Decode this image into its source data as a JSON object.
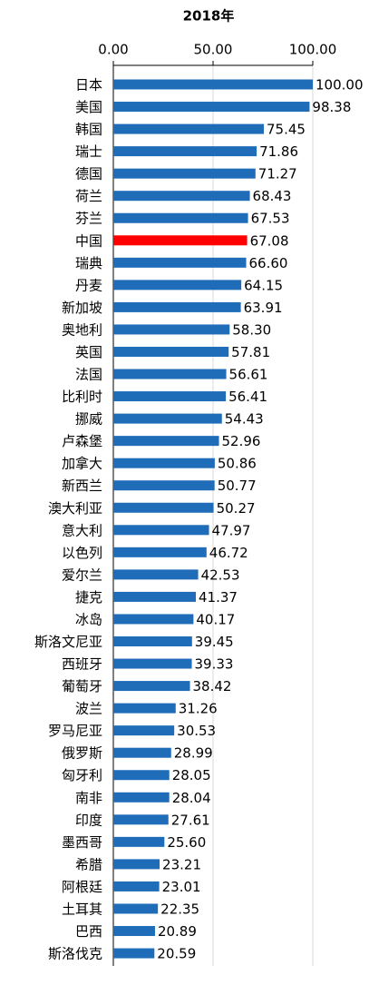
{
  "chart_data": {
    "type": "hbar",
    "title": "2018年",
    "categories": [
      "日本",
      "美国",
      "韩国",
      "瑞士",
      "德国",
      "荷兰",
      "芬兰",
      "中国",
      "瑞典",
      "丹麦",
      "新加坡",
      "奥地利",
      "英国",
      "法国",
      "比利时",
      "挪威",
      "卢森堡",
      "加拿大",
      "新西兰",
      "澳大利亚",
      "意大利",
      "以色列",
      "爱尔兰",
      "捷克",
      "冰岛",
      "斯洛文尼亚",
      "西班牙",
      "葡萄牙",
      "波兰",
      "罗马尼亚",
      "俄罗斯",
      "匈牙利",
      "南非",
      "印度",
      "墨西哥",
      "希腊",
      "阿根廷",
      "土耳其",
      "巴西",
      "斯洛伐克"
    ],
    "values": [
      100,
      98.38,
      75.45,
      71.86,
      71.27,
      68.43,
      67.53,
      67.08,
      66.6,
      64.15,
      63.91,
      58.3,
      57.81,
      56.61,
      56.41,
      54.43,
      52.96,
      50.86,
      50.77,
      50.27,
      47.97,
      46.72,
      42.53,
      41.37,
      40.17,
      39.45,
      39.33,
      38.42,
      31.26,
      30.53,
      28.99,
      28.05,
      28.04,
      27.61,
      25.6,
      23.21,
      23.01,
      22.35,
      20.89,
      20.59
    ],
    "value_labels": [
      "100.00",
      "98.38",
      "75.45",
      "71.86",
      "71.27",
      "68.43",
      "67.53",
      "67.08",
      "66.60",
      "64.15",
      "63.91",
      "58.30",
      "57.81",
      "56.61",
      "56.41",
      "54.43",
      "52.96",
      "50.86",
      "50.77",
      "50.27",
      "47.97",
      "46.72",
      "42.53",
      "41.37",
      "40.17",
      "39.45",
      "39.33",
      "38.42",
      "31.26",
      "30.53",
      "28.99",
      "28.05",
      "28.04",
      "27.61",
      "25.60",
      "23.21",
      "23.01",
      "22.35",
      "20.89",
      "20.59"
    ],
    "colors": [
      "#1f6db8",
      "#1f6db8",
      "#1f6db8",
      "#1f6db8",
      "#1f6db8",
      "#1f6db8",
      "#1f6db8",
      "#ff0000",
      "#1f6db8",
      "#1f6db8",
      "#1f6db8",
      "#1f6db8",
      "#1f6db8",
      "#1f6db8",
      "#1f6db8",
      "#1f6db8",
      "#1f6db8",
      "#1f6db8",
      "#1f6db8",
      "#1f6db8",
      "#1f6db8",
      "#1f6db8",
      "#1f6db8",
      "#1f6db8",
      "#1f6db8",
      "#1f6db8",
      "#1f6db8",
      "#1f6db8",
      "#1f6db8",
      "#1f6db8",
      "#1f6db8",
      "#1f6db8",
      "#1f6db8",
      "#1f6db8",
      "#1f6db8",
      "#1f6db8",
      "#1f6db8",
      "#1f6db8",
      "#1f6db8",
      "#1f6db8"
    ],
    "xlim": [
      0,
      100
    ],
    "xticks": [
      {
        "value": 0,
        "label": "0.00"
      },
      {
        "value": 50,
        "label": "50.00"
      },
      {
        "value": 100,
        "label": "100.00"
      }
    ],
    "grid": true
  }
}
